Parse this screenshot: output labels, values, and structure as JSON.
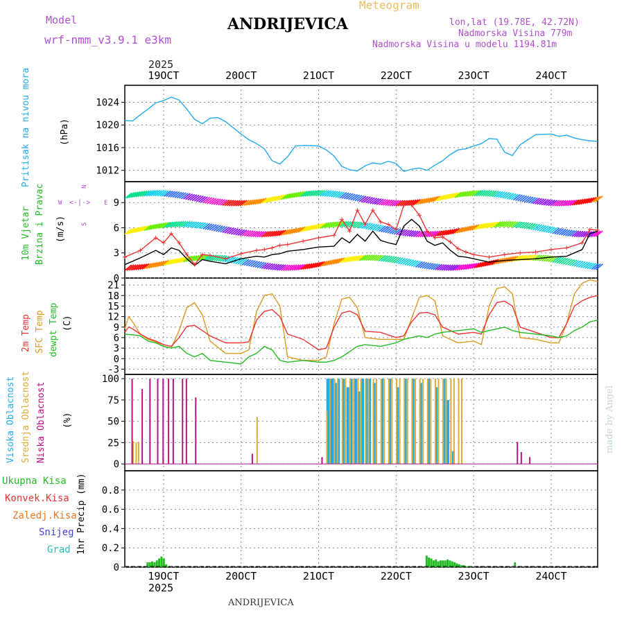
{
  "header": {
    "model_label": "Model",
    "model_name": "wrf-nmm_v3.9.1 e3km",
    "station": "ANDRIJEVICA",
    "product": "Meteogram",
    "lonlat": "lon,lat (19.78E, 42.72N)",
    "elevation": "Nadmorska Visina 779m",
    "model_elevation": "Nadmorska Visina u modelu 1194.81m",
    "year": "2025",
    "footer": "ANDRIJEVICA",
    "watermark": "made by Angel"
  },
  "colors": {
    "pressure": "#22aaee",
    "wind_obs": "#000000",
    "gust": "#ee3333",
    "t2m": "#ee3333",
    "sfc": "#dd9922",
    "dew": "#22bb22",
    "high": "#22aaee",
    "mid": "#ddaa33",
    "low": "#bb1188",
    "precip": "#22bb22"
  },
  "chart_data": [
    {
      "type": "line",
      "id": "pressure",
      "ylabel_title": "Pritisak na nivou mora",
      "ylabel_unit": "(hPa)",
      "ylim": [
        1010,
        1027
      ],
      "yticks": [
        1012,
        1016,
        1020,
        1024
      ],
      "x_ticks": [
        "19OCT",
        "20OCT",
        "21OCT",
        "22OCT",
        "23OCT",
        "24OCT"
      ],
      "x_range_days": [
        -0.5,
        5.6
      ],
      "series": [
        {
          "name": "MSLP",
          "x": [
            -0.5,
            -0.4,
            -0.3,
            -0.2,
            -0.1,
            0,
            0.1,
            0.2,
            0.3,
            0.4,
            0.5,
            0.6,
            0.7,
            0.8,
            1.0,
            1.1,
            1.2,
            1.3,
            1.4,
            1.5,
            1.6,
            1.7,
            1.8,
            2.0,
            2.1,
            2.2,
            2.3,
            2.4,
            2.5,
            2.6,
            2.7,
            2.8,
            2.9,
            3.0,
            3.1,
            3.2,
            3.3,
            3.4,
            3.5,
            3.6,
            3.7,
            3.8,
            3.9,
            4.0,
            4.1,
            4.2,
            4.3,
            4.4,
            4.5,
            4.6,
            4.7,
            4.8,
            5.0,
            5.1,
            5.2,
            5.3,
            5.4,
            5.5,
            5.6
          ],
          "values": [
            1020.8,
            1020.7,
            1021.8,
            1022.8,
            1023.9,
            1024.3,
            1024.9,
            1024.4,
            1022.8,
            1021.0,
            1020.2,
            1021.2,
            1021.3,
            1020.6,
            1018.4,
            1017.4,
            1016.7,
            1015.8,
            1013.7,
            1013.1,
            1014.4,
            1016.3,
            1016.4,
            1016.3,
            1015.6,
            1014.5,
            1012.7,
            1012.1,
            1011.9,
            1012.8,
            1013.3,
            1013.1,
            1013.6,
            1013.2,
            1011.8,
            1012.2,
            1012.4,
            1012.0,
            1012.9,
            1013.7,
            1014.8,
            1015.6,
            1015.8,
            1016.3,
            1016.7,
            1017.6,
            1017.5,
            1015.2,
            1014.6,
            1016.5,
            1017.4,
            1018.3,
            1018.4,
            1018.0,
            1018.2,
            1017.7,
            1017.4,
            1017.2,
            1017.1
          ]
        }
      ]
    },
    {
      "type": "line",
      "id": "wind",
      "ylabel_title": "10m Vjetar",
      "ylabel_title2": "Brzina i Pravac",
      "ylabel_unit": "(m/s)",
      "compass": "N",
      "compass_w": "W",
      "compass_e": "E",
      "compass_s": "S",
      "compass_ne": "<-|->",
      "ylim": [
        0,
        11.5
      ],
      "yticks": [
        0,
        3,
        6,
        9
      ],
      "series": [
        {
          "name": "Brzina",
          "x": [
            -0.5,
            -0.3,
            -0.1,
            0,
            0.1,
            0.2,
            0.3,
            0.4,
            0.5,
            0.6,
            0.8,
            1.0,
            1.2,
            1.3,
            1.4,
            1.5,
            1.6,
            1.8,
            2.0,
            2.2,
            2.3,
            2.4,
            2.5,
            2.6,
            2.7,
            2.8,
            2.9,
            3.0,
            3.1,
            3.2,
            3.3,
            3.4,
            3.5,
            3.6,
            3.7,
            3.8,
            3.9,
            4.0,
            4.2,
            4.4,
            4.6,
            4.8,
            5.0,
            5.2,
            5.4,
            5.5,
            5.6
          ],
          "values": [
            1.6,
            2.4,
            3.3,
            2.8,
            3.6,
            3.3,
            2.3,
            1.5,
            2.2,
            2.0,
            1.7,
            2.3,
            2.6,
            2.5,
            2.8,
            2.9,
            3.2,
            3.4,
            3.7,
            3.8,
            4.8,
            4.2,
            5.2,
            4.4,
            5.6,
            4.5,
            4.2,
            4.0,
            6.2,
            7.0,
            6.2,
            4.4,
            3.9,
            4.2,
            3.3,
            2.6,
            2.5,
            2.3,
            1.9,
            2.1,
            2.2,
            2.3,
            2.5,
            2.6,
            3.4,
            5.3,
            5.6
          ]
        },
        {
          "name": "Udari",
          "x": [
            -0.5,
            -0.3,
            -0.1,
            0,
            0.1,
            0.2,
            0.3,
            0.4,
            0.5,
            0.6,
            0.8,
            1.0,
            1.2,
            1.3,
            1.4,
            1.5,
            1.6,
            1.8,
            2.0,
            2.2,
            2.3,
            2.4,
            2.5,
            2.6,
            2.7,
            2.8,
            2.9,
            3.0,
            3.1,
            3.2,
            3.3,
            3.4,
            3.5,
            3.6,
            3.7,
            3.8,
            3.9,
            4.0,
            4.2,
            4.4,
            4.6,
            4.8,
            5.0,
            5.2,
            5.4,
            5.5,
            5.6
          ],
          "values": [
            2.5,
            3.3,
            4.8,
            4.2,
            5.3,
            4.2,
            2.8,
            1.6,
            2.8,
            2.7,
            2.3,
            2.9,
            3.3,
            3.4,
            3.6,
            3.9,
            4.0,
            4.4,
            4.8,
            5.1,
            7.0,
            5.6,
            8.1,
            6.4,
            8.1,
            6.7,
            6.4,
            5.8,
            8.7,
            8.7,
            7.5,
            5.6,
            4.8,
            4.9,
            4.3,
            3.5,
            3.1,
            2.8,
            2.5,
            2.8,
            3.0,
            3.1,
            3.4,
            3.6,
            4.2,
            5.8,
            5.7
          ]
        }
      ]
    },
    {
      "type": "line",
      "id": "temperature",
      "ylabel_t2m": "2m Temp",
      "ylabel_sfc": "SFC Temp",
      "ylabel_dew": "dewpt Temp",
      "ylabel_unit": "(C)",
      "ylim": [
        -4.5,
        23
      ],
      "yticks": [
        -3,
        0,
        3,
        6,
        9,
        12,
        15,
        18,
        21
      ],
      "series": [
        {
          "name": "2m Temp",
          "x": [
            -0.5,
            -0.45,
            -0.4,
            -0.3,
            -0.2,
            -0.1,
            0,
            0.1,
            0.2,
            0.3,
            0.4,
            0.5,
            0.6,
            0.8,
            1.0,
            1.1,
            1.2,
            1.3,
            1.4,
            1.5,
            1.6,
            1.8,
            2.0,
            2.1,
            2.2,
            2.3,
            2.4,
            2.5,
            2.6,
            2.8,
            3.0,
            3.1,
            3.2,
            3.3,
            3.4,
            3.5,
            3.6,
            3.8,
            4.0,
            4.1,
            4.2,
            4.3,
            4.4,
            4.5,
            4.6,
            4.8,
            5.0,
            5.1,
            5.2,
            5.3,
            5.4,
            5.5,
            5.6
          ],
          "values": [
            7.5,
            9.0,
            8.5,
            7.0,
            5.8,
            5.0,
            4.0,
            3.5,
            6.0,
            9.2,
            9.5,
            8.0,
            6.5,
            4.5,
            4.5,
            4.8,
            11.0,
            13.5,
            14.0,
            12.0,
            7.0,
            5.5,
            2.5,
            3.0,
            9.0,
            13.0,
            13.6,
            12.5,
            7.8,
            7.5,
            6.0,
            6.5,
            10.5,
            13.0,
            13.2,
            12.5,
            9.0,
            7.0,
            7.5,
            7.0,
            12.5,
            16.0,
            16.4,
            15.0,
            9.0,
            7.5,
            6.0,
            6.0,
            10.0,
            15.0,
            16.5,
            17.5,
            18.0
          ]
        },
        {
          "name": "SFC Temp",
          "x": [
            -0.5,
            -0.45,
            -0.4,
            -0.3,
            -0.2,
            -0.1,
            0,
            0.1,
            0.2,
            0.3,
            0.4,
            0.5,
            0.6,
            0.8,
            1.0,
            1.1,
            1.2,
            1.3,
            1.4,
            1.5,
            1.6,
            1.8,
            2.0,
            2.1,
            2.2,
            2.3,
            2.4,
            2.5,
            2.6,
            2.8,
            3.0,
            3.1,
            3.2,
            3.3,
            3.4,
            3.5,
            3.6,
            3.8,
            4.0,
            4.1,
            4.2,
            4.3,
            4.4,
            4.5,
            4.6,
            4.8,
            5.0,
            5.1,
            5.2,
            5.3,
            5.4,
            5.5,
            5.6
          ],
          "values": [
            8.5,
            12.0,
            10.5,
            7.0,
            5.5,
            4.8,
            3.5,
            3.0,
            8.0,
            14.5,
            16.0,
            12.5,
            5.0,
            1.5,
            1.5,
            2.5,
            13.5,
            18.0,
            18.5,
            15.0,
            0.5,
            -0.5,
            -0.5,
            0.5,
            10.0,
            17.0,
            17.5,
            14.5,
            6.0,
            5.5,
            5.5,
            5.5,
            11.5,
            17.5,
            18.0,
            16.5,
            6.5,
            4.5,
            5.0,
            4.0,
            15.0,
            20.0,
            20.5,
            18.5,
            6.0,
            5.5,
            4.5,
            4.5,
            10.0,
            18.5,
            21.5,
            22.5,
            22.0
          ]
        },
        {
          "name": "dewpt Temp",
          "x": [
            -0.5,
            -0.4,
            -0.3,
            -0.2,
            -0.1,
            0,
            0.1,
            0.2,
            0.3,
            0.4,
            0.5,
            0.6,
            0.8,
            1.0,
            1.1,
            1.2,
            1.3,
            1.4,
            1.5,
            1.6,
            1.8,
            2.0,
            2.1,
            2.2,
            2.3,
            2.4,
            2.5,
            2.6,
            2.8,
            3.0,
            3.1,
            3.2,
            3.3,
            3.4,
            3.5,
            3.6,
            3.8,
            4.0,
            4.1,
            4.2,
            4.3,
            4.4,
            4.5,
            4.6,
            4.8,
            5.0,
            5.1,
            5.2,
            5.3,
            5.4,
            5.5,
            5.6
          ],
          "values": [
            7.0,
            6.8,
            6.5,
            5.0,
            4.5,
            3.5,
            3.0,
            3.5,
            1.5,
            0.5,
            1.5,
            -0.5,
            -1.0,
            -1.5,
            0.5,
            1.5,
            3.5,
            2.5,
            -0.5,
            -1.0,
            -0.5,
            -1.0,
            -1.0,
            -0.5,
            0.5,
            2.0,
            3.5,
            4.0,
            3.5,
            4.5,
            5.5,
            6.0,
            6.5,
            6.0,
            7.0,
            7.5,
            8.0,
            8.5,
            7.5,
            8.0,
            8.5,
            9.0,
            8.0,
            7.5,
            7.0,
            6.5,
            6.0,
            6.5,
            8.0,
            9.0,
            10.5,
            11.0
          ]
        }
      ]
    },
    {
      "type": "bar",
      "id": "clouds",
      "ylabel_high": "Visoka Oblacnost",
      "ylabel_mid": "Srednja Oblacnost",
      "ylabel_low": "Niska Oblacnost",
      "ylabel_unit": "(%)",
      "ylim": [
        -8,
        105
      ],
      "yticks": [
        0,
        25,
        50,
        75,
        100
      ],
      "series": [
        {
          "name": "Visoka",
          "x": [
            2.1,
            2.13,
            2.16,
            2.2,
            2.24,
            2.3,
            2.36,
            2.4,
            2.46,
            2.5,
            2.55,
            2.6,
            2.64,
            2.7,
            2.8,
            2.9,
            3.0,
            3.1,
            3.2,
            3.3,
            3.4,
            3.5,
            3.6,
            3.65,
            3.72
          ],
          "values": [
            100,
            100,
            100,
            95,
            100,
            100,
            90,
            100,
            100,
            85,
            100,
            100,
            100,
            95,
            100,
            100,
            90,
            100,
            100,
            95,
            100,
            90,
            100,
            75,
            15
          ]
        },
        {
          "name": "Srednja",
          "x": [
            -0.42,
            -0.38,
            -0.35,
            -0.03,
            1.18,
            2.08,
            2.12,
            2.18,
            2.22,
            2.28,
            2.32,
            2.38,
            2.42,
            2.48,
            2.52,
            2.58,
            2.62,
            2.68,
            2.72,
            2.78,
            2.82,
            2.88,
            2.92,
            2.98,
            3.02,
            3.08,
            3.12,
            3.18,
            3.22,
            3.28,
            3.32,
            3.38,
            3.42,
            3.48,
            3.52,
            3.58,
            3.62,
            3.68,
            3.72,
            3.78,
            3.82
          ],
          "values": [
            27,
            25,
            26,
            6,
            55,
            62,
            100,
            100,
            100,
            100,
            100,
            100,
            100,
            100,
            100,
            100,
            100,
            100,
            100,
            100,
            100,
            100,
            100,
            100,
            100,
            100,
            100,
            100,
            100,
            100,
            100,
            100,
            100,
            100,
            100,
            100,
            100,
            100,
            100,
            100,
            100
          ]
        },
        {
          "name": "Niska",
          "x": [
            -0.45,
            -0.32,
            -0.22,
            -0.12,
            -0.05,
            0.02,
            0.08,
            0.2,
            0.25,
            0.37,
            1.1,
            2.0,
            4.52,
            4.57,
            4.68
          ],
          "values": [
            100,
            88,
            100,
            100,
            100,
            100,
            100,
            100,
            100,
            78,
            12,
            8,
            26,
            14,
            8
          ]
        }
      ]
    },
    {
      "type": "bar",
      "id": "precip",
      "labels": [
        "Ukupna Kisa",
        "Konvek.Kisa",
        "Zaledj.Kisa",
        "Snijeg",
        "Grad"
      ],
      "label_colors": [
        "#22bb22",
        "#ee3333",
        "#ee7722",
        "#4444dd",
        "#22bbbb"
      ],
      "ylabel_unit": "1hr Precip (mm)",
      "ylim": [
        0,
        1.0
      ],
      "yticks": [
        0,
        0.2,
        0.4,
        0.6,
        0.8
      ],
      "series": [
        {
          "name": "Ukupna Kisa",
          "x": [
            -0.22,
            -0.19,
            -0.16,
            -0.13,
            -0.1,
            -0.07,
            -0.04,
            -0.01,
            0.02,
            3.38,
            3.41,
            3.44,
            3.47,
            3.5,
            3.53,
            3.56,
            3.59,
            3.62,
            3.65,
            3.68,
            3.71,
            3.74,
            3.77,
            3.8,
            3.83,
            3.86,
            3.89,
            3.92,
            3.95,
            4.52
          ],
          "values": [
            0.05,
            0.05,
            0.06,
            0.05,
            0.07,
            0.09,
            0.11,
            0.09,
            0.03,
            0.12,
            0.1,
            0.09,
            0.07,
            0.08,
            0.06,
            0.07,
            0.07,
            0.07,
            0.08,
            0.07,
            0.06,
            0.05,
            0.04,
            0.03,
            0.02,
            0.02,
            0.01,
            0.01,
            0.01,
            0.05
          ]
        }
      ],
      "bottom_ticks": [
        "19OCT",
        "20OCT",
        "21OCT",
        "22OCT",
        "23OCT",
        "24OCT"
      ]
    }
  ]
}
